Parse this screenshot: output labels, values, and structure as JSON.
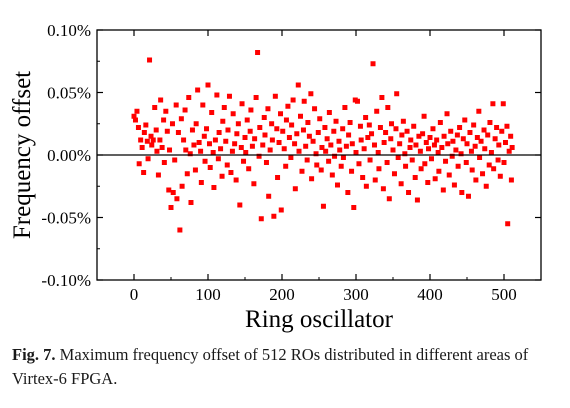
{
  "caption": {
    "label": "Fig. 7.",
    "text": "Maximum frequency offset of 512 ROs distributed in different areas of Virtex-6 FPGA."
  },
  "chart_data": {
    "type": "scatter",
    "title": "",
    "xlabel": "Ring oscillator",
    "ylabel": "Frequency offset",
    "xlim": [
      -50,
      550
    ],
    "ylim": [
      -0.1,
      0.1
    ],
    "x_ticks": [
      0,
      100,
      200,
      300,
      400,
      500
    ],
    "x_tick_labels": [
      "0",
      "100",
      "200",
      "300",
      "400",
      "500"
    ],
    "y_ticks": [
      -0.1,
      -0.05,
      0.0,
      0.05,
      0.1
    ],
    "y_tick_labels": [
      "-0.10%",
      "-0.05%",
      "0.00%",
      "0.05%",
      "0.10%"
    ],
    "y_unit": "%",
    "reference_line_y": 0.0,
    "marker": "square",
    "marker_color": "#ff0000",
    "grid": false,
    "legend": "none",
    "series": [
      {
        "points": [
          [
            0,
            0.031
          ],
          [
            2,
            0.028
          ],
          [
            4,
            0.035
          ],
          [
            6,
            0.022
          ],
          [
            7,
            -0.007
          ],
          [
            9,
            0.012
          ],
          [
            11,
            0.006
          ],
          [
            13,
            -0.014
          ],
          [
            14,
            0.018
          ],
          [
            16,
            0.024
          ],
          [
            18,
            0.011
          ],
          [
            19,
            -0.003
          ],
          [
            21,
            0.076
          ],
          [
            23,
            0.015
          ],
          [
            24,
            0.008
          ],
          [
            26,
            0.012
          ],
          [
            28,
            0.038
          ],
          [
            30,
            0.02
          ],
          [
            31,
            0.003
          ],
          [
            33,
            -0.016
          ],
          [
            35,
            0.012
          ],
          [
            36,
            0.044
          ],
          [
            38,
            0.006
          ],
          [
            40,
            0.028
          ],
          [
            41,
            -0.006
          ],
          [
            43,
            0.035
          ],
          [
            45,
            0.019
          ],
          [
            47,
            -0.028
          ],
          [
            48,
            0.004
          ],
          [
            50,
            -0.042
          ],
          [
            52,
            0.025
          ],
          [
            53,
            -0.03
          ],
          [
            55,
            -0.004
          ],
          [
            57,
            0.04
          ],
          [
            58,
            -0.035
          ],
          [
            60,
            0.018
          ],
          [
            62,
            -0.06
          ],
          [
            64,
            0.029
          ],
          [
            65,
            -0.025
          ],
          [
            67,
            0.012
          ],
          [
            69,
            0.036
          ],
          [
            70,
            0.004
          ],
          [
            72,
            -0.015
          ],
          [
            74,
            0.046
          ],
          [
            76,
            0.001
          ],
          [
            77,
            -0.038
          ],
          [
            79,
            0.02
          ],
          [
            81,
            0.008
          ],
          [
            83,
            -0.012
          ],
          [
            84,
            0.025
          ],
          [
            86,
            0.052
          ],
          [
            88,
            0.01
          ],
          [
            90,
            0.003
          ],
          [
            91,
            -0.022
          ],
          [
            93,
            0.04
          ],
          [
            95,
            0.015
          ],
          [
            96,
            -0.005
          ],
          [
            98,
            0.021
          ],
          [
            100,
            0.056
          ],
          [
            102,
            0.009
          ],
          [
            103,
            -0.01
          ],
          [
            105,
            0.034
          ],
          [
            107,
            0.002
          ],
          [
            108,
            -0.026
          ],
          [
            110,
            0.012
          ],
          [
            112,
            0.048
          ],
          [
            114,
            -0.003
          ],
          [
            115,
            0.018
          ],
          [
            117,
            0.005
          ],
          [
            119,
            -0.017
          ],
          [
            120,
            0.027
          ],
          [
            122,
            0.038
          ],
          [
            124,
            0.011
          ],
          [
            126,
            -0.008
          ],
          [
            127,
            0.02
          ],
          [
            129,
            0.047
          ],
          [
            131,
            -0.014
          ],
          [
            133,
            0.003
          ],
          [
            134,
            0.033
          ],
          [
            136,
            0.009
          ],
          [
            138,
            -0.02
          ],
          [
            139,
            0.017
          ],
          [
            141,
            0.025
          ],
          [
            143,
            -0.04
          ],
          [
            145,
            0.006
          ],
          [
            146,
            0.041
          ],
          [
            148,
            -0.005
          ],
          [
            150,
            0.014
          ],
          [
            151,
            0.002
          ],
          [
            153,
            0.028
          ],
          [
            155,
            -0.011
          ],
          [
            157,
            0.019
          ],
          [
            158,
            0.036
          ],
          [
            160,
            0.007
          ],
          [
            162,
            -0.023
          ],
          [
            163,
            0.013
          ],
          [
            165,
            0.046
          ],
          [
            167,
            0.082
          ],
          [
            169,
            -0.001
          ],
          [
            170,
            0.022
          ],
          [
            172,
            -0.051
          ],
          [
            174,
            0.008
          ],
          [
            176,
            0.03
          ],
          [
            177,
            0.016
          ],
          [
            179,
            -0.006
          ],
          [
            181,
            0.037
          ],
          [
            182,
            -0.033
          ],
          [
            184,
            0.004
          ],
          [
            186,
            0.025
          ],
          [
            187,
            0.012
          ],
          [
            189,
            -0.049
          ],
          [
            191,
            0.047
          ],
          [
            193,
            0.021
          ],
          [
            194,
            -0.018
          ],
          [
            196,
            0.01
          ],
          [
            198,
            0.033
          ],
          [
            199,
            -0.044
          ],
          [
            201,
            0.019
          ],
          [
            203,
            0.005
          ],
          [
            205,
            -0.009
          ],
          [
            206,
            0.028
          ],
          [
            208,
            0.039
          ],
          [
            210,
            0.014
          ],
          [
            212,
            -0.002
          ],
          [
            213,
            0.024
          ],
          [
            215,
            0.044
          ],
          [
            217,
            0.009
          ],
          [
            218,
            -0.027
          ],
          [
            220,
            0.017
          ],
          [
            222,
            0.056
          ],
          [
            223,
            0.003
          ],
          [
            225,
            0.031
          ],
          [
            227,
            -0.013
          ],
          [
            229,
            0.02
          ],
          [
            230,
            0.043
          ],
          [
            232,
            0.007
          ],
          [
            234,
            -0.004
          ],
          [
            235,
            0.026
          ],
          [
            237,
            0.015
          ],
          [
            239,
            0.049
          ],
          [
            240,
            -0.019
          ],
          [
            242,
            0.011
          ],
          [
            244,
            0.037
          ],
          [
            246,
            0.001
          ],
          [
            247,
            -0.008
          ],
          [
            249,
            0.018
          ],
          [
            251,
            0.029
          ],
          [
            253,
            -0.012
          ],
          [
            254,
            0.006
          ],
          [
            256,
            -0.041
          ],
          [
            258,
            0.022
          ],
          [
            259,
            0.003
          ],
          [
            261,
            0.013
          ],
          [
            263,
            -0.005
          ],
          [
            264,
            0.034
          ],
          [
            266,
            0.008
          ],
          [
            268,
            -0.016
          ],
          [
            270,
            0.019
          ],
          [
            271,
            -0.001
          ],
          [
            273,
            0.027
          ],
          [
            275,
            -0.024
          ],
          [
            277,
            0.011
          ],
          [
            278,
            0.004
          ],
          [
            280,
            -0.009
          ],
          [
            282,
            0.021
          ],
          [
            283,
            -0.002
          ],
          [
            285,
            0.038
          ],
          [
            287,
            0.007
          ],
          [
            289,
            -0.03
          ],
          [
            290,
            0.016
          ],
          [
            292,
            0.026
          ],
          [
            294,
            -0.013
          ],
          [
            295,
            0.009
          ],
          [
            297,
            -0.042
          ],
          [
            299,
            0.044
          ],
          [
            300,
            0.002
          ],
          [
            302,
            0.043
          ],
          [
            304,
            -0.007
          ],
          [
            306,
            0.023
          ],
          [
            307,
            0.012
          ],
          [
            309,
            -0.018
          ],
          [
            311,
            0.005
          ],
          [
            313,
            0.03
          ],
          [
            314,
            -0.025
          ],
          [
            316,
            0.014
          ],
          [
            318,
            0.024
          ],
          [
            319,
            -0.004
          ],
          [
            321,
            0.017
          ],
          [
            323,
            0.073
          ],
          [
            325,
            0.008
          ],
          [
            326,
            -0.02
          ],
          [
            328,
            0.035
          ],
          [
            330,
            0.002
          ],
          [
            331,
            -0.011
          ],
          [
            333,
            0.022
          ],
          [
            335,
            0.046
          ],
          [
            337,
            -0.027
          ],
          [
            338,
            0.01
          ],
          [
            340,
            0.018
          ],
          [
            342,
            -0.006
          ],
          [
            343,
            0.038
          ],
          [
            345,
            -0.035
          ],
          [
            347,
            0.013
          ],
          [
            348,
            0.025
          ],
          [
            350,
            0.004
          ],
          [
            352,
            -0.015
          ],
          [
            354,
            0.021
          ],
          [
            355,
            0.049
          ],
          [
            357,
            -0.002
          ],
          [
            359,
            0.009
          ],
          [
            361,
            -0.023
          ],
          [
            362,
            0.016
          ],
          [
            364,
            0.027
          ],
          [
            366,
            0.001
          ],
          [
            367,
            -0.009
          ],
          [
            369,
            0.019
          ],
          [
            371,
            -0.03
          ],
          [
            373,
            0.006
          ],
          [
            374,
            0.012
          ],
          [
            376,
            -0.004
          ],
          [
            378,
            0.023
          ],
          [
            380,
            -0.018
          ],
          [
            381,
            0.008
          ],
          [
            383,
            -0.036
          ],
          [
            385,
            0.015
          ],
          [
            387,
            0.003
          ],
          [
            388,
            -0.011
          ],
          [
            390,
            0.017
          ],
          [
            392,
            0.031
          ],
          [
            393,
            -0.007
          ],
          [
            395,
            0.01
          ],
          [
            397,
            -0.022
          ],
          [
            398,
            0.005
          ],
          [
            400,
            0.014
          ],
          [
            402,
            -0.003
          ],
          [
            404,
            0.021
          ],
          [
            406,
            0.008
          ],
          [
            407,
            -0.019
          ],
          [
            409,
            0.012
          ],
          [
            411,
            0.002
          ],
          [
            412,
            -0.013
          ],
          [
            414,
            0.026
          ],
          [
            416,
            0.006
          ],
          [
            418,
            -0.028
          ],
          [
            419,
            0.015
          ],
          [
            421,
            -0.005
          ],
          [
            423,
            0.033
          ],
          [
            424,
            0.009
          ],
          [
            426,
            -0.016
          ],
          [
            428,
            0.019
          ],
          [
            430,
            -0.001
          ],
          [
            431,
            0.011
          ],
          [
            433,
            -0.024
          ],
          [
            435,
            0.004
          ],
          [
            437,
            0.016
          ],
          [
            438,
            -0.009
          ],
          [
            440,
            0.022
          ],
          [
            442,
            0.001
          ],
          [
            443,
            -0.03
          ],
          [
            445,
            0.013
          ],
          [
            447,
            0.028
          ],
          [
            449,
            -0.006
          ],
          [
            450,
            0.009
          ],
          [
            452,
            -0.033
          ],
          [
            454,
            0.018
          ],
          [
            456,
            0.003
          ],
          [
            457,
            -0.012
          ],
          [
            459,
            0.024
          ],
          [
            461,
            0.007
          ],
          [
            462,
            -0.02
          ],
          [
            464,
            0.014
          ],
          [
            466,
            0.035
          ],
          [
            467,
            -0.002
          ],
          [
            469,
            0.011
          ],
          [
            471,
            -0.015
          ],
          [
            473,
            0.02
          ],
          [
            474,
            0.005
          ],
          [
            476,
            -0.025
          ],
          [
            478,
            0.016
          ],
          [
            480,
            -0.008
          ],
          [
            481,
            0.026
          ],
          [
            483,
            0.002
          ],
          [
            485,
            0.041
          ],
          [
            486,
            -0.011
          ],
          [
            488,
            0.013
          ],
          [
            490,
            0.022
          ],
          [
            492,
            -0.004
          ],
          [
            493,
            0.008
          ],
          [
            495,
            -0.017
          ],
          [
            497,
            0.019
          ],
          [
            499,
            0.041
          ],
          [
            500,
            -0.006
          ],
          [
            502,
            0.01
          ],
          [
            504,
            0.023
          ],
          [
            505,
            -0.055
          ],
          [
            507,
            0.003
          ],
          [
            509,
            0.015
          ],
          [
            510,
            -0.02
          ],
          [
            511,
            0.006
          ]
        ]
      }
    ]
  }
}
